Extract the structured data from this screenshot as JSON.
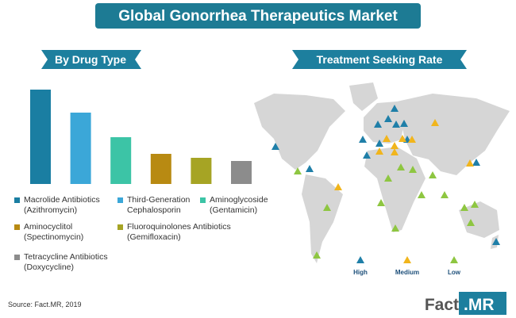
{
  "header": {
    "title": "Global Gonorrhea Therapeutics Market"
  },
  "chart_data": {
    "type": "bar",
    "title": "By Drug Type",
    "categories": [
      "Macrolide Antibiotics (Azithromycin)",
      "Third-Generation Cephalosporin",
      "Aminoglycoside (Gentamicin)",
      "Aminocyclitol (Spectinomycin)",
      "Fluoroquinolones Antibiotics (Gemifloxacin)",
      "Tetracycline Antibiotics (Doxycycline)"
    ],
    "values": [
      119,
      90,
      59,
      38,
      33,
      29
    ],
    "colors": [
      "#1a7ea2",
      "#3ba7d8",
      "#3cc4a6",
      "#b88a12",
      "#a6a424",
      "#8c8c8c"
    ]
  },
  "map": {
    "title": "Treatment Seeking Rate",
    "legend": [
      {
        "label": "High",
        "color": "#1f7fa8"
      },
      {
        "label": "Medium",
        "color": "#f1b51c"
      },
      {
        "label": "Low",
        "color": "#8ec641"
      }
    ]
  },
  "footer": {
    "source": "Source: Fact.MR, 2019",
    "logo": {
      "name": "Fact",
      "suffix": ".MR"
    }
  }
}
